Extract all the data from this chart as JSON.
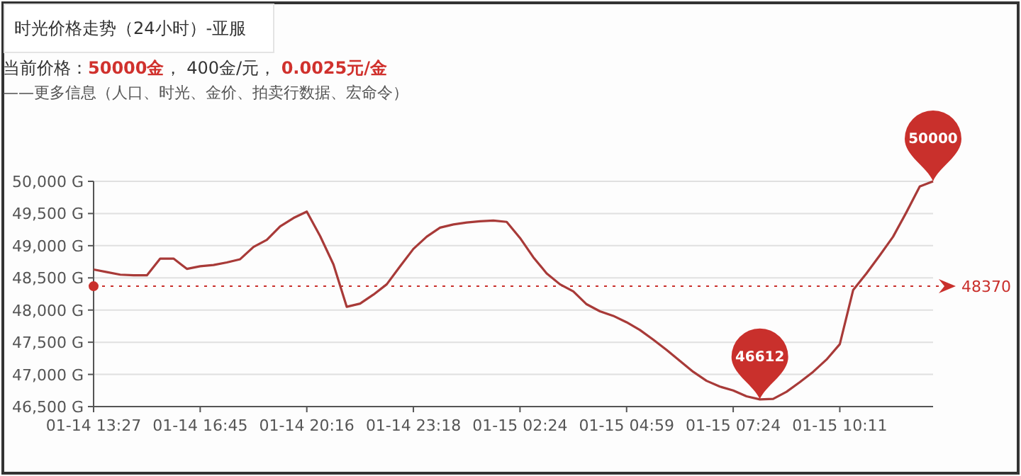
{
  "chart_data": {
    "type": "line",
    "title": "时光价格走势（24小时）-亚服",
    "subtitle": "当前价格：**50000金**， 400金/元， **0.0025元/金**",
    "annotations": [
      "——更多信息（人口、时光、金价、拍卖行数据、宏命令）",
      {
        "text": "50000",
        "y": 50000
      },
      {
        "text": "46612",
        "y": 46612
      }
    ],
    "categories": [
      "01-14 13:27",
      null,
      null,
      null,
      null,
      null,
      null,
      null,
      "01-14 16:45",
      null,
      null,
      null,
      null,
      null,
      null,
      null,
      "01-14 20:16",
      null,
      null,
      null,
      null,
      null,
      null,
      null,
      "01-14 23:18",
      null,
      null,
      null,
      null,
      null,
      null,
      null,
      "01-15 02:24",
      null,
      null,
      null,
      null,
      null,
      null,
      null,
      "01-15 04:59",
      null,
      null,
      null,
      null,
      null,
      null,
      null,
      "01-15 07:24",
      null,
      null,
      null,
      null,
      null,
      null,
      null,
      "01-15 10:11",
      null,
      null,
      null,
      null,
      null,
      null,
      null
    ],
    "values": [
      48630,
      48590,
      48550,
      48540,
      48540,
      48800,
      48800,
      48640,
      48680,
      48700,
      48740,
      48790,
      48980,
      49090,
      49300,
      49430,
      49530,
      49150,
      48710,
      48050,
      48100,
      48240,
      48400,
      48680,
      48950,
      49140,
      49280,
      49330,
      49360,
      49380,
      49390,
      49370,
      49120,
      48820,
      48570,
      48400,
      48290,
      48090,
      47980,
      47910,
      47810,
      47690,
      47540,
      47380,
      47210,
      47040,
      46900,
      46810,
      46750,
      46660,
      46612,
      46620,
      46730,
      46880,
      47040,
      47230,
      47470,
      48310,
      48570,
      48850,
      49140,
      49520,
      49920,
      50000
    ],
    "color": "#a83a38",
    "ylim": [
      46500,
      50000
    ],
    "yticks": [
      {
        "value": 46500,
        "label": "46,500 G"
      },
      {
        "value": 47000,
        "label": "47,000 G"
      },
      {
        "value": 47500,
        "label": "47,500 G"
      },
      {
        "value": 48000,
        "label": "48,000 G"
      },
      {
        "value": 48500,
        "label": "48,500 G"
      },
      {
        "value": 49000,
        "label": "49,000 G"
      },
      {
        "value": 49500,
        "label": "49,500 G"
      },
      {
        "value": 50000,
        "label": "50,000 G"
      }
    ],
    "grid": "y",
    "line_style": "solid",
    "ref_lines": [
      {
        "axis": "y",
        "value": 48370,
        "label": "48370",
        "color": "#c9302c",
        "line_style": "dotted"
      }
    ]
  }
}
